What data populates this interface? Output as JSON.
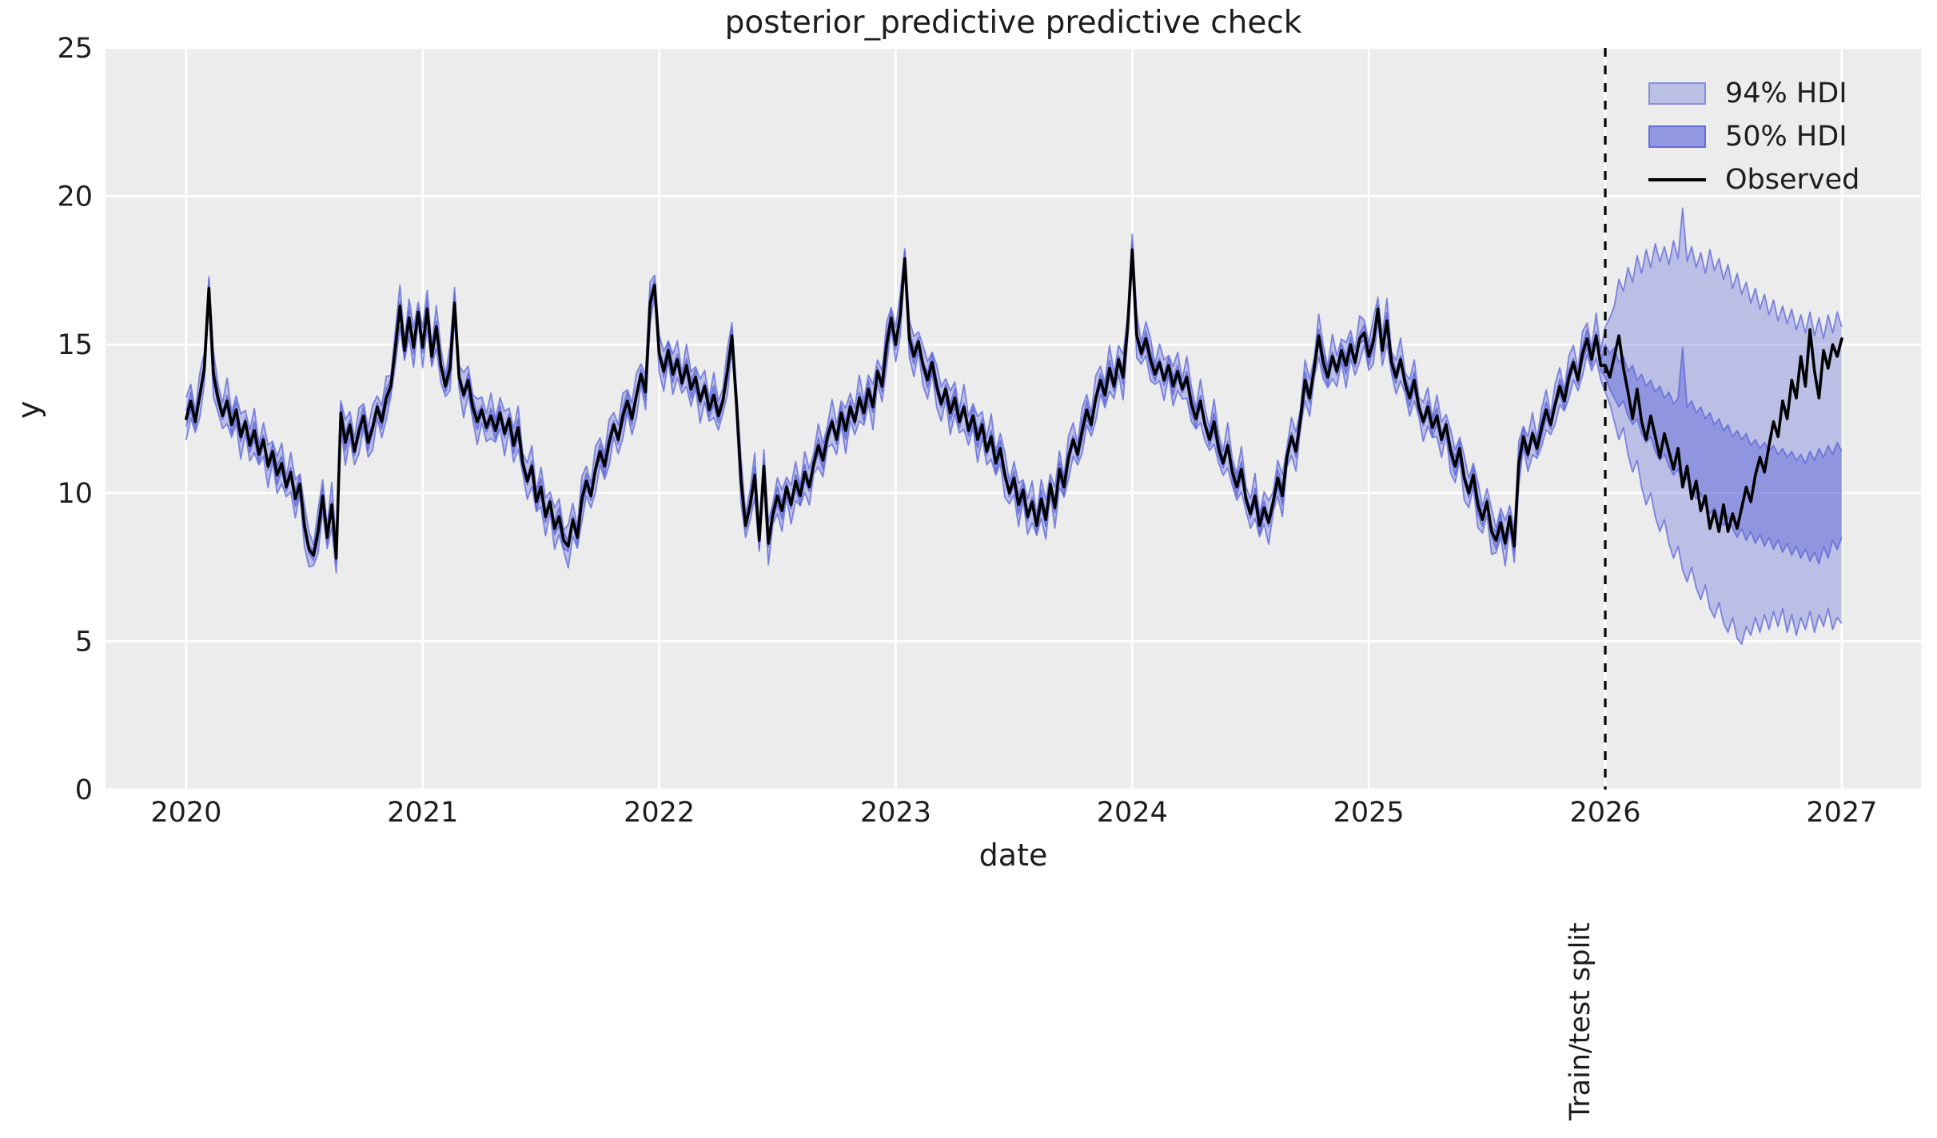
{
  "figure": {
    "title": "posterior_predictive predictive check",
    "background_color": "#ffffff",
    "axes_background_color": "#ececec",
    "grid_color": "#ffffff",
    "text_color": "#1d1d1d",
    "accent_color": "#5a64d8",
    "observed_color": "#000000"
  },
  "legend": {
    "items": [
      {
        "label": "94% HDI",
        "type": "patch",
        "fill": "rgba(90,100,216,0.32)",
        "border": "rgba(90,100,216,0.55)"
      },
      {
        "label": "50% HDI",
        "type": "patch",
        "fill": "rgba(90,100,216,0.62)",
        "border": "rgba(90,100,216,0.85)"
      },
      {
        "label": "Observed",
        "type": "line",
        "color": "#000000"
      }
    ]
  },
  "annotations": {
    "split_label": "Train/test split",
    "split_x": 2026.0
  },
  "chart_data": {
    "type": "line",
    "title": "posterior_predictive predictive check",
    "xlabel": "date",
    "ylabel": "y",
    "xlim": [
      2019.659,
      2027.335
    ],
    "ylim": [
      0,
      25
    ],
    "x_ticks": [
      2020,
      2021,
      2022,
      2023,
      2024,
      2025,
      2026,
      2027
    ],
    "y_ticks": [
      0,
      5,
      10,
      15,
      20,
      25
    ],
    "grid": true,
    "legend_position": "upper right",
    "x_start": 2020.0,
    "x_step_years": 0.01923077,
    "series": [
      {
        "name": "Observed",
        "color": "#000000",
        "values": [
          12.5,
          13.1,
          12.4,
          13.3,
          14.2,
          16.9,
          14.0,
          13.2,
          12.6,
          13.1,
          12.3,
          12.8,
          11.9,
          12.4,
          11.6,
          12.1,
          11.3,
          11.8,
          10.9,
          11.4,
          10.6,
          11.0,
          10.2,
          10.7,
          9.8,
          10.3,
          8.9,
          8.1,
          7.9,
          8.7,
          9.9,
          8.5,
          9.6,
          7.8,
          12.7,
          11.7,
          12.3,
          11.4,
          12.1,
          12.6,
          11.7,
          12.2,
          12.9,
          12.4,
          13.2,
          13.6,
          14.9,
          16.3,
          14.8,
          15.9,
          14.9,
          16.1,
          14.9,
          16.2,
          14.6,
          15.6,
          14.3,
          13.6,
          14.2,
          16.4,
          13.9,
          13.3,
          13.8,
          12.9,
          12.4,
          12.8,
          12.2,
          12.6,
          12.1,
          12.7,
          12.0,
          12.5,
          11.6,
          12.2,
          11.0,
          10.4,
          10.9,
          9.7,
          10.2,
          9.2,
          9.7,
          8.8,
          9.2,
          8.4,
          8.2,
          9.1,
          8.5,
          9.8,
          10.4,
          9.9,
          10.8,
          11.4,
          10.9,
          11.7,
          12.3,
          11.8,
          12.6,
          13.1,
          12.5,
          13.3,
          14.0,
          13.4,
          16.4,
          17.0,
          14.7,
          14.1,
          14.8,
          14.0,
          14.5,
          13.7,
          14.3,
          13.5,
          13.9,
          13.1,
          13.6,
          12.8,
          13.3,
          12.6,
          13.1,
          14.1,
          15.3,
          13.0,
          10.4,
          8.9,
          9.6,
          10.6,
          8.4,
          10.9,
          8.3,
          9.3,
          9.9,
          9.4,
          10.2,
          9.6,
          10.4,
          9.9,
          10.7,
          10.2,
          11.0,
          11.6,
          11.1,
          11.9,
          12.4,
          11.8,
          12.7,
          12.1,
          12.9,
          12.4,
          13.2,
          12.7,
          13.5,
          12.9,
          14.1,
          13.6,
          15.0,
          15.9,
          15.0,
          16.0,
          17.9,
          15.2,
          14.6,
          15.1,
          14.3,
          13.8,
          14.4,
          13.6,
          13.0,
          13.5,
          12.7,
          13.2,
          12.4,
          12.9,
          12.1,
          12.6,
          11.8,
          12.3,
          11.4,
          11.9,
          11.0,
          11.5,
          10.6,
          10.0,
          10.5,
          9.6,
          10.1,
          9.2,
          9.7,
          8.9,
          9.8,
          9.1,
          10.3,
          9.5,
          10.8,
          10.2,
          11.2,
          11.8,
          11.3,
          12.1,
          12.8,
          12.3,
          13.2,
          13.8,
          13.3,
          14.2,
          13.6,
          14.5,
          13.9,
          15.6,
          18.2,
          15.3,
          14.7,
          15.2,
          14.5,
          14.0,
          14.4,
          13.8,
          14.3,
          13.6,
          14.1,
          13.5,
          13.9,
          13.0,
          12.5,
          13.1,
          12.3,
          11.8,
          12.4,
          11.5,
          11.0,
          11.6,
          10.7,
          10.2,
          10.8,
          9.8,
          9.3,
          9.9,
          8.9,
          9.5,
          9.0,
          9.7,
          10.5,
          9.9,
          11.2,
          11.9,
          11.4,
          12.5,
          13.8,
          13.2,
          14.2,
          15.3,
          14.4,
          13.9,
          14.6,
          14.1,
          14.8,
          14.3,
          15.0,
          14.4,
          15.2,
          15.4,
          14.6,
          15.1,
          16.2,
          14.8,
          15.8,
          14.4,
          13.9,
          14.5,
          13.7,
          13.2,
          13.8,
          12.9,
          12.4,
          12.9,
          12.2,
          12.6,
          11.8,
          12.3,
          11.4,
          10.9,
          11.5,
          10.5,
          10.0,
          10.6,
          9.6,
          9.1,
          9.7,
          8.7,
          8.4,
          9.0,
          8.3,
          9.2,
          8.2,
          11.0,
          11.9,
          11.3,
          12.0,
          11.5,
          12.2,
          12.8,
          12.3,
          13.0,
          13.6,
          13.1,
          13.9,
          14.4,
          13.8,
          14.7,
          15.2,
          14.5,
          15.3,
          14.3,
          14.3,
          13.9,
          14.6,
          15.3,
          14.2,
          13.4,
          12.5,
          13.5,
          12.4,
          11.8,
          12.6,
          11.9,
          11.2,
          12.0,
          11.4,
          10.8,
          11.5,
          10.2,
          10.9,
          9.8,
          10.4,
          9.4,
          9.9,
          8.8,
          9.4,
          8.7,
          9.6,
          8.7,
          9.3,
          8.8,
          9.5,
          10.2,
          9.7,
          10.6,
          11.2,
          10.7,
          11.6,
          12.4,
          11.9,
          13.1,
          12.5,
          13.8,
          13.2,
          14.6,
          13.6,
          15.5,
          14.1,
          13.2,
          14.8,
          14.2,
          15.0,
          14.6,
          15.2
        ]
      }
    ],
    "hdi_train": {
      "note": "posterior predictive bands hug the observed line before the split",
      "x_range": [
        2020.0,
        2026.0
      ],
      "hdi94_halfwidth": 0.55,
      "hdi50_halfwidth": 0.22
    },
    "hdi_test": {
      "x_start": 2026.0,
      "hi94": [
        15.6,
        15.9,
        16.3,
        17.2,
        16.8,
        17.6,
        17.1,
        18.0,
        17.4,
        18.2,
        17.6,
        18.4,
        17.8,
        18.3,
        17.7,
        18.5,
        17.9,
        19.6,
        17.8,
        18.3,
        17.6,
        18.1,
        17.4,
        18.2,
        17.5,
        17.9,
        17.2,
        17.7,
        16.9,
        17.4,
        16.7,
        17.1,
        16.4,
        16.9,
        16.2,
        16.7,
        16.0,
        16.5,
        15.8,
        16.3,
        15.7,
        16.2,
        15.5,
        16.0,
        15.4,
        16.1,
        15.3,
        15.9,
        15.2,
        16.0,
        15.4,
        16.1,
        15.6
      ],
      "lo94": [
        13.4,
        13.0,
        12.4,
        11.8,
        12.2,
        11.3,
        10.7,
        11.1,
        10.2,
        9.6,
        10.0,
        9.2,
        8.7,
        9.1,
        8.3,
        7.8,
        8.2,
        7.4,
        7.0,
        7.5,
        6.8,
        6.4,
        6.9,
        6.1,
        5.8,
        6.3,
        5.6,
        5.3,
        5.8,
        5.1,
        4.9,
        5.5,
        5.2,
        5.8,
        5.3,
        5.9,
        5.4,
        6.0,
        5.5,
        6.1,
        5.3,
        5.9,
        5.2,
        5.8,
        5.4,
        6.0,
        5.3,
        5.9,
        5.5,
        6.1,
        5.4,
        5.8,
        5.6
      ],
      "hi50": [
        15.0,
        14.7,
        14.9,
        14.4,
        14.6,
        14.1,
        14.3,
        13.8,
        14.0,
        13.6,
        13.8,
        13.4,
        13.6,
        13.2,
        13.4,
        13.0,
        13.2,
        14.9,
        12.9,
        13.1,
        12.7,
        12.9,
        12.5,
        12.7,
        12.3,
        12.5,
        12.1,
        12.3,
        11.9,
        12.1,
        11.8,
        12.0,
        11.6,
        11.8,
        11.5,
        11.7,
        11.4,
        11.6,
        11.3,
        11.5,
        11.2,
        11.4,
        11.1,
        11.3,
        11.0,
        11.4,
        11.1,
        11.5,
        11.2,
        11.6,
        11.3,
        11.7,
        11.4
      ],
      "lo50": [
        13.9,
        13.5,
        13.2,
        12.9,
        13.1,
        12.6,
        12.3,
        12.5,
        12.0,
        11.7,
        11.9,
        11.4,
        11.1,
        11.3,
        10.9,
        10.6,
        10.8,
        10.3,
        10.5,
        10.1,
        9.8,
        10.0,
        9.6,
        9.3,
        9.5,
        9.1,
        8.9,
        9.2,
        8.8,
        8.5,
        8.8,
        8.4,
        8.7,
        8.3,
        8.6,
        8.2,
        8.5,
        8.1,
        8.4,
        8.0,
        8.3,
        7.9,
        8.2,
        7.8,
        8.1,
        7.7,
        8.0,
        7.6,
        8.2,
        7.8,
        8.4,
        8.1,
        8.5
      ]
    }
  }
}
